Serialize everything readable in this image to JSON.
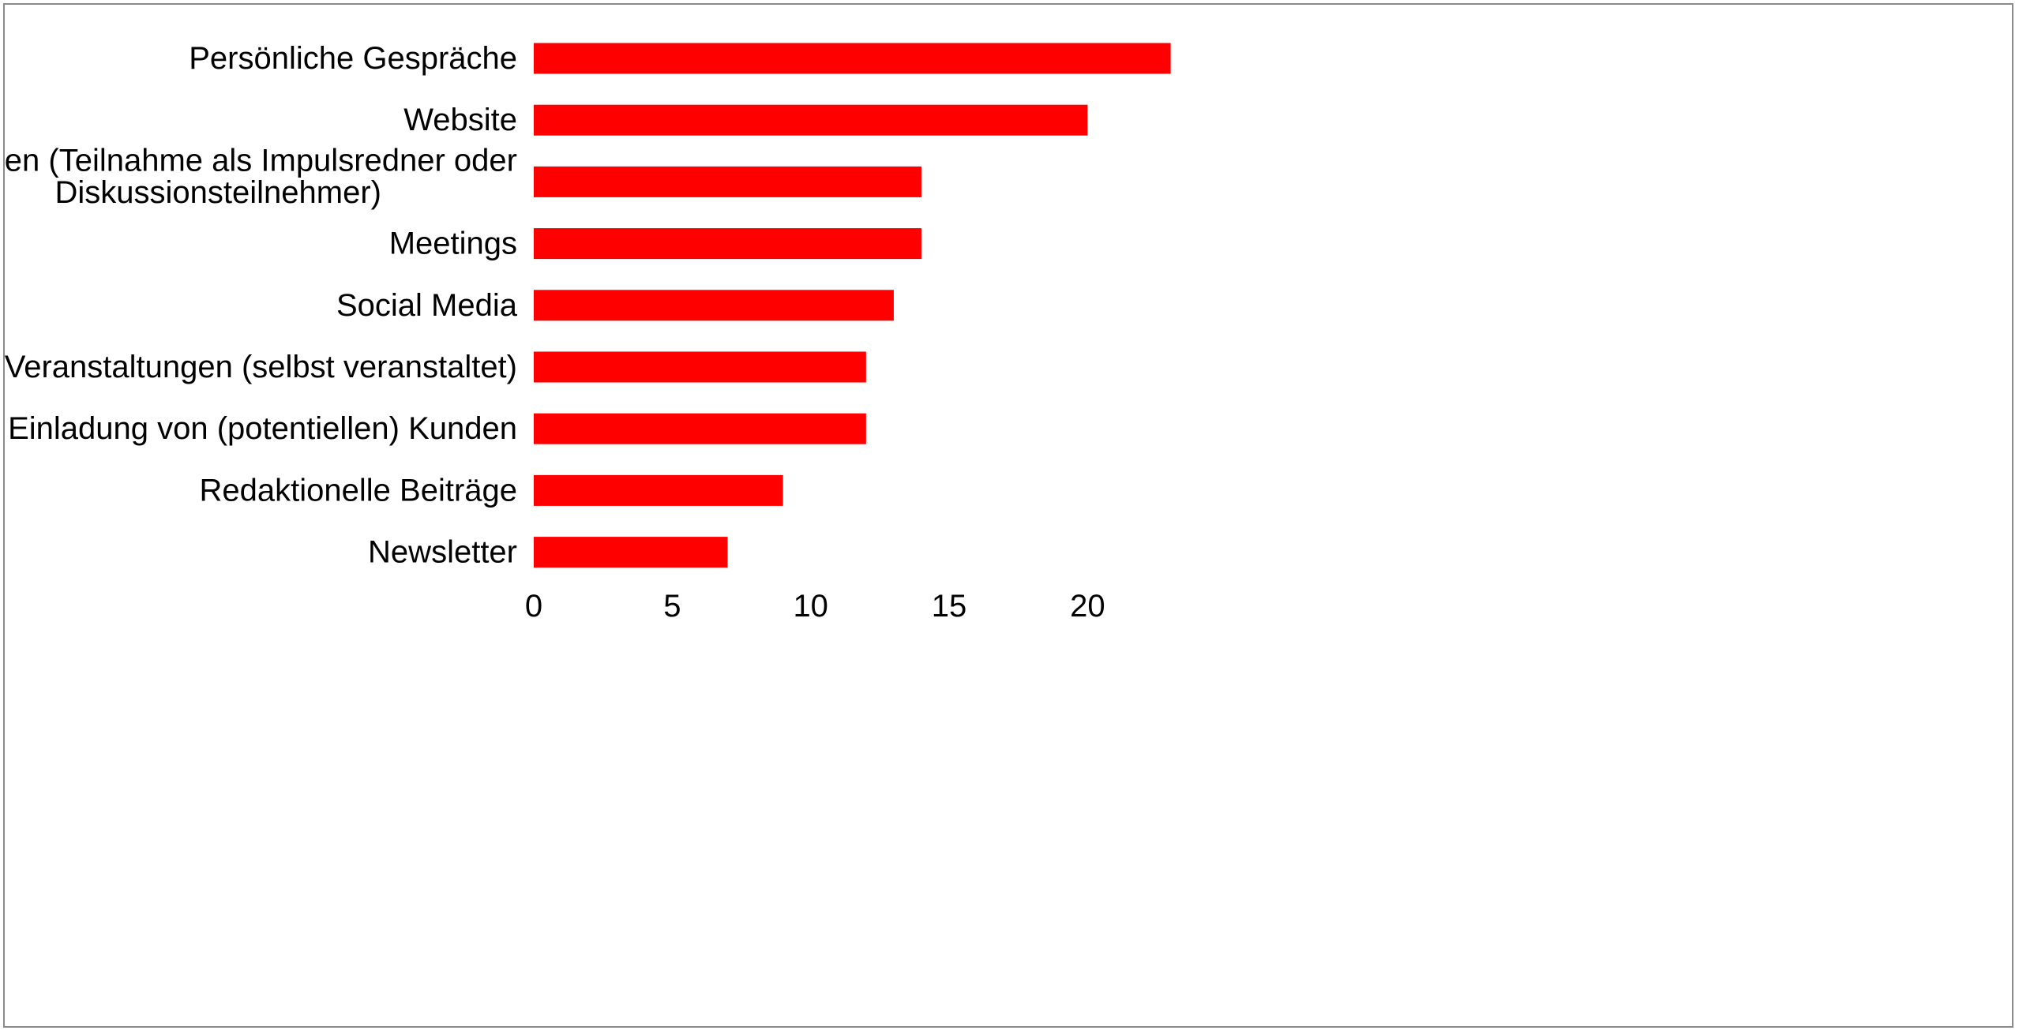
{
  "chart_data": {
    "type": "bar",
    "orientation": "horizontal",
    "categories": [
      "Persönliche Gespräche",
      "Website",
      "Veranstaltungen (Teilnahme als Impulsredner oder Diskussionsteilnehmer)",
      "Meetings",
      "Social Media",
      "Veranstaltungen (selbst veranstaltet)",
      "Einladung von (potentiellen) Kunden",
      "Redaktionelle Beiträge",
      "Newsletter"
    ],
    "category_label_lines": [
      [
        "Persönliche Gespräche"
      ],
      [
        "Website"
      ],
      [
        "Veranstaltungen (Teilnahme als Impulsredner oder",
        "Diskussionsteilnehmer)"
      ],
      [
        "Meetings"
      ],
      [
        "Social Media"
      ],
      [
        "Veranstaltungen (selbst veranstaltet)"
      ],
      [
        "Einladung von (potentiellen) Kunden"
      ],
      [
        "Redaktionelle Beiträge"
      ],
      [
        "Newsletter"
      ]
    ],
    "values": [
      23,
      20,
      14,
      14,
      13,
      12,
      12,
      9,
      7
    ],
    "xlim": [
      0,
      25
    ],
    "xticks": [
      0,
      5,
      10,
      15,
      20
    ],
    "grid": false,
    "legend": "none",
    "bar_color": "#ff0000",
    "frame_color": "#8a8a8a"
  }
}
